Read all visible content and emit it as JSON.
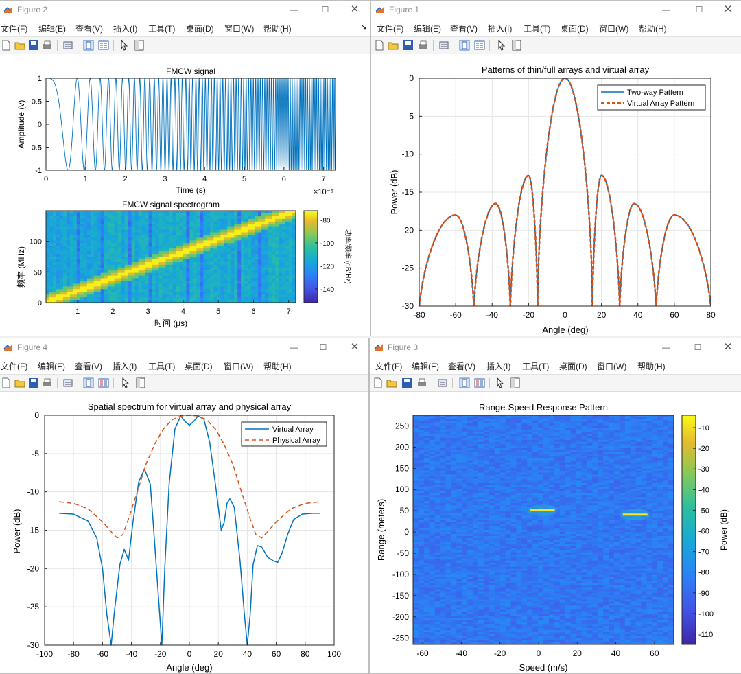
{
  "menu": {
    "file": "文件(F)",
    "edit": "编辑(E)",
    "view": "查看(V)",
    "insert": "插入(I)",
    "tools": "工具(T)",
    "desktop": "桌面(D)",
    "window": "窗口(W)",
    "help": "帮助(H)"
  },
  "windows": {
    "fig2": {
      "title": "Figure 2"
    },
    "fig1": {
      "title": "Figure 1"
    },
    "fig4": {
      "title": "Figure 4"
    },
    "fig3": {
      "title": "Figure 3"
    }
  },
  "icons": [
    "matlab-figure-icon",
    "minimize-icon",
    "maximize-icon",
    "close-icon",
    "new-figure-icon",
    "open-file-icon",
    "save-icon",
    "print-icon",
    "link-icon",
    "dock-icon",
    "panel-icon",
    "pointer-icon",
    "inspector-icon"
  ],
  "colors": {
    "blue": "#0072BD",
    "orange": "#D95319",
    "grid": "#e6e6e6"
  },
  "chart_data": [
    {
      "id": "fmcw_signal",
      "type": "line",
      "title": "FMCW signal",
      "xlabel": "Time (s)",
      "ylabel": "Amplitude (v)",
      "x_exponent": "×10⁻⁶",
      "xlim": [
        0,
        7.3
      ],
      "ylim": [
        -1,
        1
      ],
      "xticks": [
        "0",
        "1",
        "2",
        "3",
        "4",
        "5",
        "6",
        "7"
      ],
      "yticks": [
        "1",
        "0.5",
        "0",
        "-0.5",
        "-1"
      ],
      "series": [
        {
          "color": "#0072BD",
          "values": "chirp waveform oscillating between -1 and 1"
        }
      ]
    },
    {
      "id": "fmcw_spectrogram",
      "type": "heatmap",
      "title": "FMCW signal spectrogram",
      "xlabel": "时间 (μs)",
      "ylabel": "频率 (MHz)",
      "colorbar_label": "功率/频率 (dB/Hz)",
      "xlim": [
        0.1,
        7.2
      ],
      "ylim": [
        0,
        150
      ],
      "xticks": [
        "1",
        "2",
        "3",
        "4",
        "5",
        "6",
        "7"
      ],
      "yticks": [
        "0",
        "50",
        "100"
      ],
      "colorbar_ticks": [
        "-80",
        "-100",
        "-120",
        "-140"
      ],
      "ridge": {
        "x": [
          0.1,
          7.2
        ],
        "y": [
          0,
          150
        ]
      }
    },
    {
      "id": "array_patterns",
      "type": "line",
      "title": "Patterns of thin/full arrays and virtual array",
      "xlabel": "Angle (deg)",
      "ylabel": "Power (dB)",
      "xlim": [
        -80,
        80
      ],
      "ylim": [
        -30,
        0
      ],
      "xticks": [
        "-80",
        "-60",
        "-40",
        "-20",
        "0",
        "20",
        "40",
        "60",
        "80"
      ],
      "yticks": [
        "0",
        "-5",
        "-10",
        "-15",
        "-20",
        "-25",
        "-30"
      ],
      "legend_position": "top-right",
      "grid": true,
      "series": [
        {
          "name": "Two-way Pattern",
          "color": "#0072BD",
          "style": "solid"
        },
        {
          "name": "Virtual Array Pattern",
          "color": "#D95319",
          "style": "dashed"
        }
      ],
      "peaks": {
        "x": [
          -60,
          -38,
          -20,
          0,
          20,
          38,
          60
        ],
        "y": [
          -18,
          -16.5,
          -12.8,
          0,
          -12.8,
          -16.5,
          -18
        ]
      },
      "nulls": {
        "x": [
          -50,
          -30,
          -15,
          15,
          30,
          50
        ],
        "y": [
          -30,
          -30,
          -29.5,
          -29.5,
          -30,
          -30
        ]
      }
    },
    {
      "id": "spatial_spectrum",
      "type": "line",
      "title": "Spatial spectrum for virtual array and physical array",
      "xlabel": "Angle (deg)",
      "ylabel": "Power (dB)",
      "xlim": [
        -100,
        100
      ],
      "ylim": [
        -30,
        0
      ],
      "xticks": [
        "-100",
        "-80",
        "-60",
        "-40",
        "-20",
        "0",
        "20",
        "40",
        "60",
        "80",
        "100"
      ],
      "yticks": [
        "0",
        "-5",
        "-10",
        "-15",
        "-20",
        "-25",
        "-30"
      ],
      "legend_position": "top-right",
      "grid": true,
      "series": [
        {
          "name": "Virtual Array",
          "color": "#0072BD",
          "style": "solid",
          "x": [
            -90,
            -80,
            -70,
            -64,
            -60,
            -57,
            -54,
            -52,
            -48,
            -45,
            -42,
            -39,
            -35,
            -31,
            -27,
            -25,
            -22,
            -19,
            -17,
            -14,
            -10,
            -6,
            -3,
            0,
            3,
            6,
            10,
            14,
            18,
            22,
            24,
            26,
            28,
            31,
            35,
            38,
            40,
            42,
            44,
            47,
            50,
            54,
            58,
            61,
            64,
            68,
            72,
            78,
            85,
            90
          ],
          "y": [
            -12.8,
            -12.9,
            -13.8,
            -16,
            -20,
            -26,
            -30,
            -26,
            -19.5,
            -17.5,
            -18.9,
            -14,
            -8.7,
            -7,
            -9,
            -14,
            -22,
            -30,
            -20,
            -9,
            -1.8,
            -0.1,
            -0.8,
            -1.3,
            -0.8,
            -0.1,
            -0.5,
            -3.5,
            -9,
            -15,
            -14,
            -11.5,
            -10.9,
            -12,
            -19,
            -26,
            -30,
            -26,
            -19.5,
            -17,
            -17.2,
            -18.5,
            -19,
            -19.2,
            -18,
            -15.5,
            -13.6,
            -12.9,
            -12.8,
            -12.8
          ]
        },
        {
          "name": "Physical Array",
          "color": "#D95319",
          "style": "dashed",
          "x": [
            -90,
            -80,
            -70,
            -60,
            -55,
            -50,
            -46,
            -42,
            -36,
            -30,
            -24,
            -18,
            -12,
            -6,
            0,
            6,
            12,
            18,
            24,
            30,
            36,
            42,
            46,
            50,
            55,
            60,
            70,
            80,
            90
          ],
          "y": [
            -11.3,
            -11.5,
            -12.2,
            -13.9,
            -15,
            -16,
            -15.6,
            -13.5,
            -10,
            -6.4,
            -3.8,
            -1.8,
            -0.6,
            -0.1,
            0,
            -0.1,
            -0.6,
            -1.8,
            -3.8,
            -6.4,
            -10,
            -13.5,
            -15.6,
            -16,
            -15,
            -13.9,
            -12.2,
            -11.5,
            -11.3
          ]
        }
      ]
    },
    {
      "id": "range_speed",
      "type": "heatmap",
      "title": "Range-Speed Response Pattern",
      "xlabel": "Speed (m/s)",
      "ylabel": "Range (meters)",
      "colorbar_label": "Power (dB)",
      "xlim": [
        -65,
        70
      ],
      "ylim": [
        -265,
        275
      ],
      "xticks": [
        "-60",
        "-40",
        "-20",
        "0",
        "20",
        "40",
        "60"
      ],
      "yticks": [
        "250",
        "200",
        "150",
        "100",
        "50",
        "0",
        "-50",
        "-100",
        "-150",
        "-200",
        "-250"
      ],
      "colorbar_ticks": [
        "-10",
        "-20",
        "-30",
        "-40",
        "-50",
        "-60",
        "-70",
        "-80",
        "-90",
        "-100",
        "-110"
      ],
      "targets": [
        {
          "speed": 2,
          "range": 51
        },
        {
          "speed": 50,
          "range": 41
        }
      ]
    }
  ]
}
